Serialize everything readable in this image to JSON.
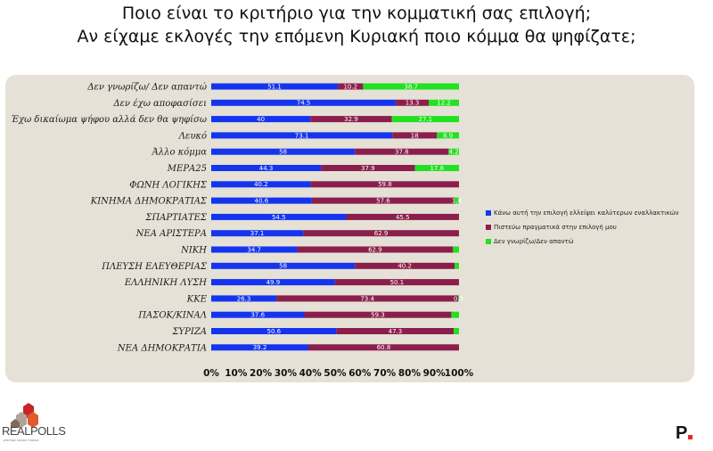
{
  "title": {
    "line1": "Ποιο είναι το κριτήριο για την κομματική σας επιλογή;",
    "line2": "Αν είχαμε εκλογές την επόμενη Κυριακή ποιο κόμμα θα ψηφίζατε;"
  },
  "brand": {
    "name": "REALPOLLS",
    "tagline": "ΕΡΕΥΝΕΣ ΚΟΙΝΗΣ ΓΝΩΜΗΣ"
  },
  "publisher_mark": "P",
  "colors": {
    "series1": "#1434f0",
    "series2": "#8b1f4b",
    "series3": "#22e022",
    "panel": "#e6e1d6"
  },
  "chart_data": {
    "type": "bar",
    "orientation": "horizontal",
    "stacked": "percent",
    "categories": [
      "Δεν γνωρίζω/ Δεν απαντώ",
      "Δεν έχω αποφασίσει",
      "Έχω δικαίωμα ψήφου αλλά δεν θα ψηφίσω",
      "Λευκό",
      "Άλλο κόμμα",
      "ΜΕΡΑ25",
      "ΦΩΝΗ ΛΟΓΙΚΗΣ",
      "ΚΙΝΗΜΑ ΔΗΜΟΚΡΑΤΙΑΣ",
      "ΣΠΑΡΤΙΑΤΕΣ",
      "ΝΕΑ ΑΡΙΣΤΕΡΑ",
      "ΝΙΚΗ",
      "ΠΛΕΥΣΗ ΕΛΕΥΘΕΡΙΑΣ",
      "ΕΛΛΗΝΙΚΗ ΛΥΣΗ",
      "ΚΚΕ",
      "ΠΑΣΟΚ/ΚΙΝΑΛ",
      "ΣΥΡΙΖΑ",
      "ΝΕΑ ΔΗΜΟΚΡΑΤΙΑ"
    ],
    "series": [
      {
        "name": "Κάνω αυτή την επιλογή ελλείψει καλύτερων εναλλακτικών",
        "values": [
          51.1,
          74.5,
          40,
          73.1,
          58,
          44.3,
          40.2,
          40.6,
          54.5,
          37.1,
          34.7,
          58,
          49.9,
          26.3,
          37.6,
          50.6,
          39.2
        ],
        "labels": [
          "51.1",
          "74.5",
          "40",
          "73.1",
          "58",
          "44.3",
          "40.2",
          "40.6",
          "54.5",
          "37.1",
          "34.7",
          "58",
          "49.9",
          "26.3",
          "37.6",
          "50.6",
          "39.2"
        ]
      },
      {
        "name": "Πιστεύω πραγματικά στην επιλογή μου",
        "values": [
          10.2,
          13.3,
          32.9,
          18,
          37.8,
          37.9,
          59.8,
          57.6,
          45.5,
          62.9,
          62.9,
          40.2,
          50.1,
          73.4,
          59.3,
          47.3,
          60.8
        ],
        "labels": [
          "10.2",
          "13.3",
          "32.9",
          "18",
          "37.8",
          "37.9",
          "59.8",
          "57.6",
          "45.5",
          "62.9",
          "62.9",
          "40.2",
          "50.1",
          "73.4",
          "59.3",
          "47.3",
          "60.8"
        ]
      },
      {
        "name": "Δεν γνωρίζω/Δεν απαντώ",
        "values": [
          38.7,
          12.2,
          27.1,
          8.9,
          4.2,
          17.8,
          0,
          1.8,
          0,
          0,
          2.4,
          1.8,
          0,
          0.3,
          3.1,
          2.1,
          0
        ],
        "labels": [
          "38.7",
          "12.2",
          "27.1",
          "8.9",
          "4.2",
          "17.8",
          "",
          "1.8",
          "",
          "",
          "",
          "",
          "",
          "0.3",
          "",
          "",
          ""
        ]
      }
    ],
    "xlim": [
      0,
      100
    ],
    "xticks": [
      "0%",
      "10%",
      "20%",
      "30%",
      "40%",
      "50%",
      "60%",
      "70%",
      "80%",
      "90%",
      "100%"
    ],
    "legend_position": "right",
    "grid": false
  }
}
